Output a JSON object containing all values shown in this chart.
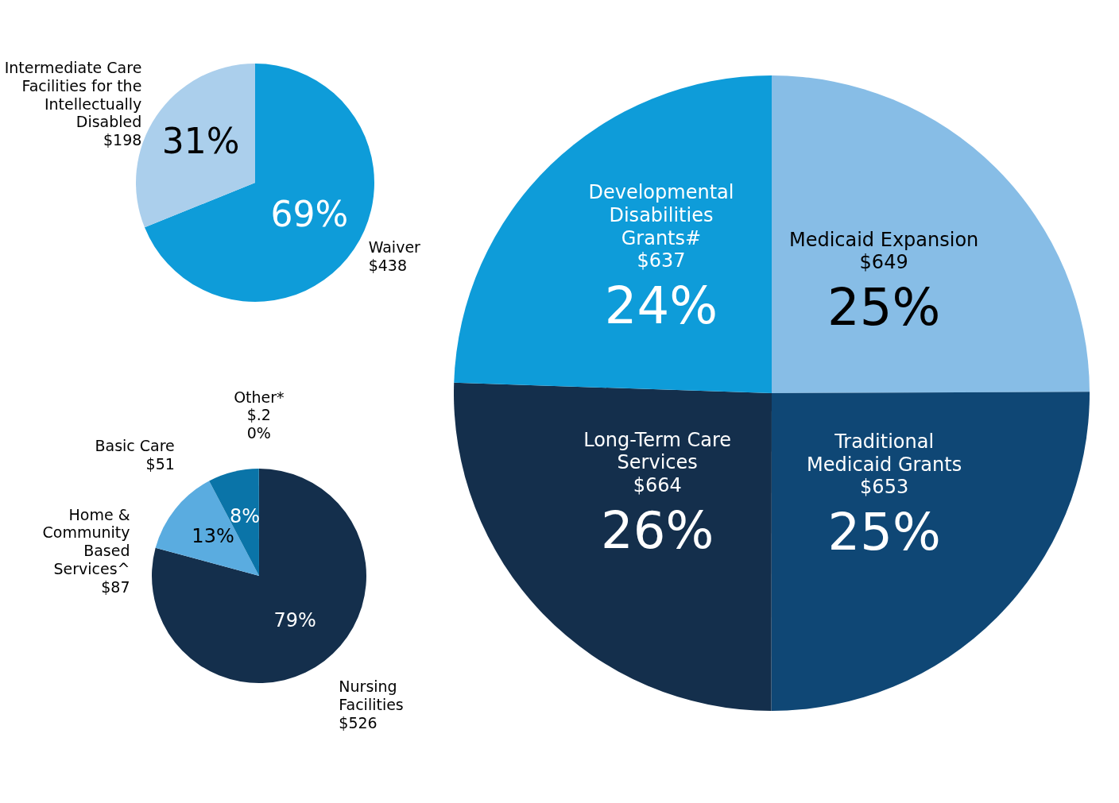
{
  "chart_data": [
    {
      "type": "pie",
      "categories": [
        "Waiver",
        "Intermediate Care Facilities for the Intellectually Disabled"
      ],
      "values": [
        438,
        198
      ],
      "colors": [
        "#0e9cd9",
        "#abcfec"
      ],
      "value_labels": [
        "$438",
        "$198"
      ],
      "annotations": [
        "69%",
        "31%"
      ]
    },
    {
      "type": "pie",
      "categories": [
        "Nursing Facilities",
        "Home & Community Based Services^",
        "Basic Care",
        "Other*"
      ],
      "values": [
        526,
        87,
        51,
        0.2
      ],
      "colors": [
        "#142f4c",
        "#5aace0",
        "#0a74a8",
        "#0a74a8"
      ],
      "value_labels": [
        "$526",
        "$87",
        "$51",
        "$.2"
      ],
      "annotations": [
        "79%",
        "13%",
        "8%",
        "0%"
      ]
    },
    {
      "type": "pie",
      "categories": [
        "Medicaid Expansion",
        "Traditional Medicaid Grants",
        "Long-Term Care Services",
        "Developmental Disabilities Grants#"
      ],
      "values": [
        649,
        653,
        664,
        637
      ],
      "colors": [
        "#87bde6",
        "#0f4775",
        "#142f4c",
        "#0e9cd9"
      ],
      "value_labels": [
        "$649",
        "$653",
        "$664",
        "$637"
      ],
      "annotations": [
        "25%",
        "25%",
        "26%",
        "24%"
      ]
    }
  ]
}
